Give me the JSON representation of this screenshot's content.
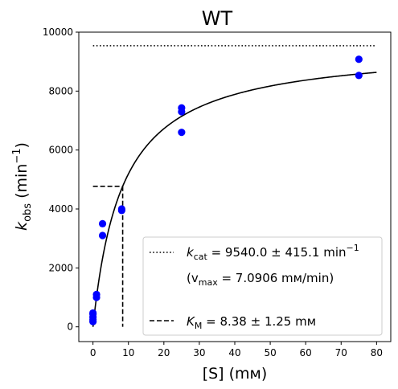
{
  "chart_data": {
    "type": "scatter",
    "title": "WT",
    "xlabel": "[S] (mм)",
    "ylabel_main": "k",
    "ylabel_sub": "obs",
    "ylabel_unit_pre": " (min",
    "ylabel_unit_sup": "−1",
    "ylabel_unit_post": ")",
    "xlim": [
      -4,
      84
    ],
    "ylim": [
      -500,
      10000
    ],
    "xticks": [
      0,
      10,
      20,
      30,
      40,
      50,
      60,
      70,
      80
    ],
    "yticks": [
      0,
      2000,
      4000,
      6000,
      8000,
      10000
    ],
    "grid": false,
    "legend_position": "lower-right",
    "points": {
      "color": "#0000ff",
      "x": [
        0,
        0,
        0,
        0,
        0,
        1,
        1,
        2.7,
        2.7,
        8.1,
        8.1,
        25,
        25,
        25,
        75,
        75
      ],
      "y": [
        180,
        250,
        330,
        430,
        470,
        1000,
        1100,
        3100,
        3500,
        3950,
        4000,
        6600,
        7300,
        7430,
        8530,
        9080
      ]
    },
    "fit": {
      "kcat": 9540.0,
      "KM": 8.38,
      "x_range": [
        0,
        80
      ]
    },
    "kcat_line": {
      "y": 9540,
      "x_range": [
        0,
        80
      ],
      "style": "dotted"
    },
    "km_lines": {
      "x": 8.38,
      "y": 4770,
      "x_start": 0,
      "style": "dashed"
    },
    "legend": {
      "kcat_label": "k",
      "kcat_sub": "cat",
      "kcat_value": " = 9540.0 ± 415.1 min",
      "kcat_sup": "−1",
      "vmax_open": "(v",
      "vmax_sub": "max",
      "vmax_value": " = 7.0906 mм/min)",
      "km_label": "K",
      "km_sub": "M",
      "km_value": " = 8.38 ± 1.25 mм"
    }
  }
}
